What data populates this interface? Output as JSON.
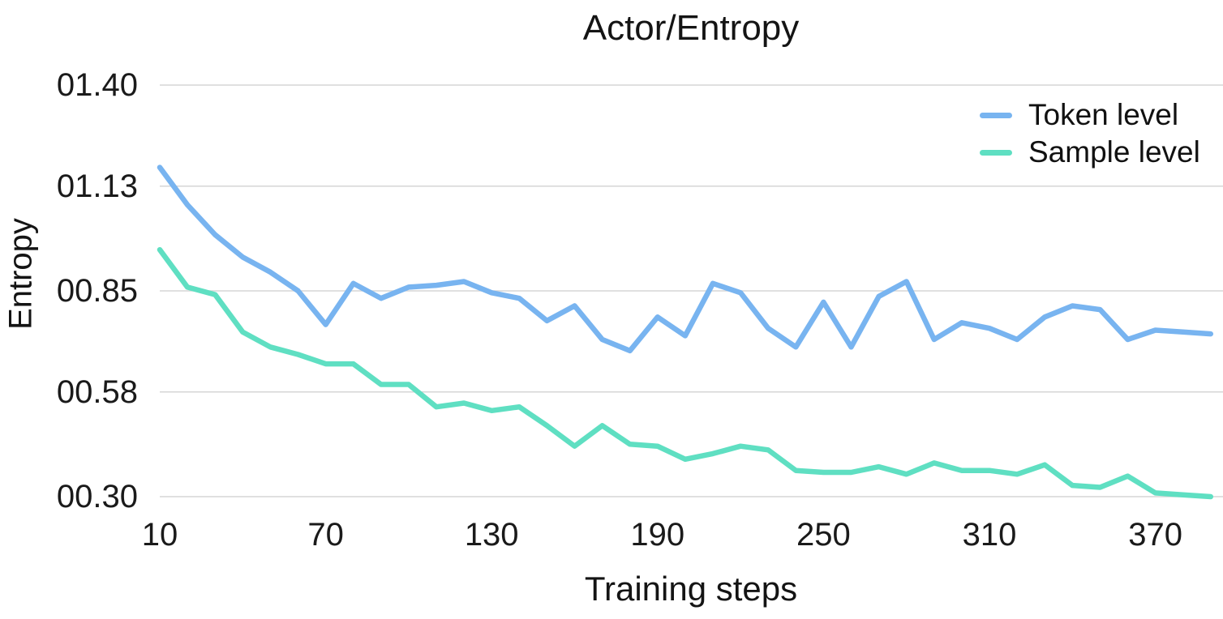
{
  "chart_data": {
    "type": "line",
    "title": "Actor/Entropy",
    "xlabel": "Training steps",
    "ylabel": "Entropy",
    "x_ticks": [
      10,
      70,
      130,
      190,
      250,
      310,
      370
    ],
    "y_ticks": [
      {
        "label": "01.40",
        "value": 1.4
      },
      {
        "label": "01.13",
        "value": 1.13
      },
      {
        "label": "00.85",
        "value": 0.85
      },
      {
        "label": "00.58",
        "value": 0.58
      },
      {
        "label": "00.30",
        "value": 0.3
      }
    ],
    "xlim": [
      10,
      390
    ],
    "ylim": [
      0.3,
      1.4
    ],
    "grid": "horizontal",
    "legend_position": "top-right",
    "x": [
      10,
      20,
      30,
      40,
      50,
      60,
      70,
      80,
      90,
      100,
      110,
      120,
      130,
      140,
      150,
      160,
      170,
      180,
      190,
      200,
      210,
      220,
      230,
      240,
      250,
      260,
      270,
      280,
      290,
      300,
      310,
      320,
      330,
      340,
      350,
      360,
      370,
      380,
      390
    ],
    "series": [
      {
        "name": "Token level",
        "color": "#78b4f0",
        "values": [
          1.18,
          1.08,
          1.0,
          0.94,
          0.9,
          0.85,
          0.76,
          0.87,
          0.83,
          0.86,
          0.865,
          0.875,
          0.845,
          0.83,
          0.77,
          0.81,
          0.72,
          0.69,
          0.78,
          0.73,
          0.87,
          0.845,
          0.75,
          0.7,
          0.82,
          0.7,
          0.835,
          0.875,
          0.72,
          0.765,
          0.75,
          0.72,
          0.78,
          0.81,
          0.8,
          0.72,
          0.745,
          0.74,
          0.735
        ]
      },
      {
        "name": "Sample level",
        "color": "#5fdfc2",
        "values": [
          0.96,
          0.86,
          0.84,
          0.74,
          0.7,
          0.68,
          0.655,
          0.655,
          0.6,
          0.6,
          0.54,
          0.55,
          0.53,
          0.54,
          0.49,
          0.435,
          0.49,
          0.44,
          0.435,
          0.4,
          0.415,
          0.435,
          0.425,
          0.37,
          0.365,
          0.365,
          0.38,
          0.36,
          0.39,
          0.37,
          0.37,
          0.36,
          0.385,
          0.33,
          0.325,
          0.355,
          0.31,
          0.305,
          0.3
        ]
      }
    ]
  },
  "colors": {
    "background": "#ffffff",
    "grid": "#d6d6d6",
    "text": "#1a1a1a",
    "token_line": "#78b4f0",
    "sample_line": "#5fdfc2"
  }
}
